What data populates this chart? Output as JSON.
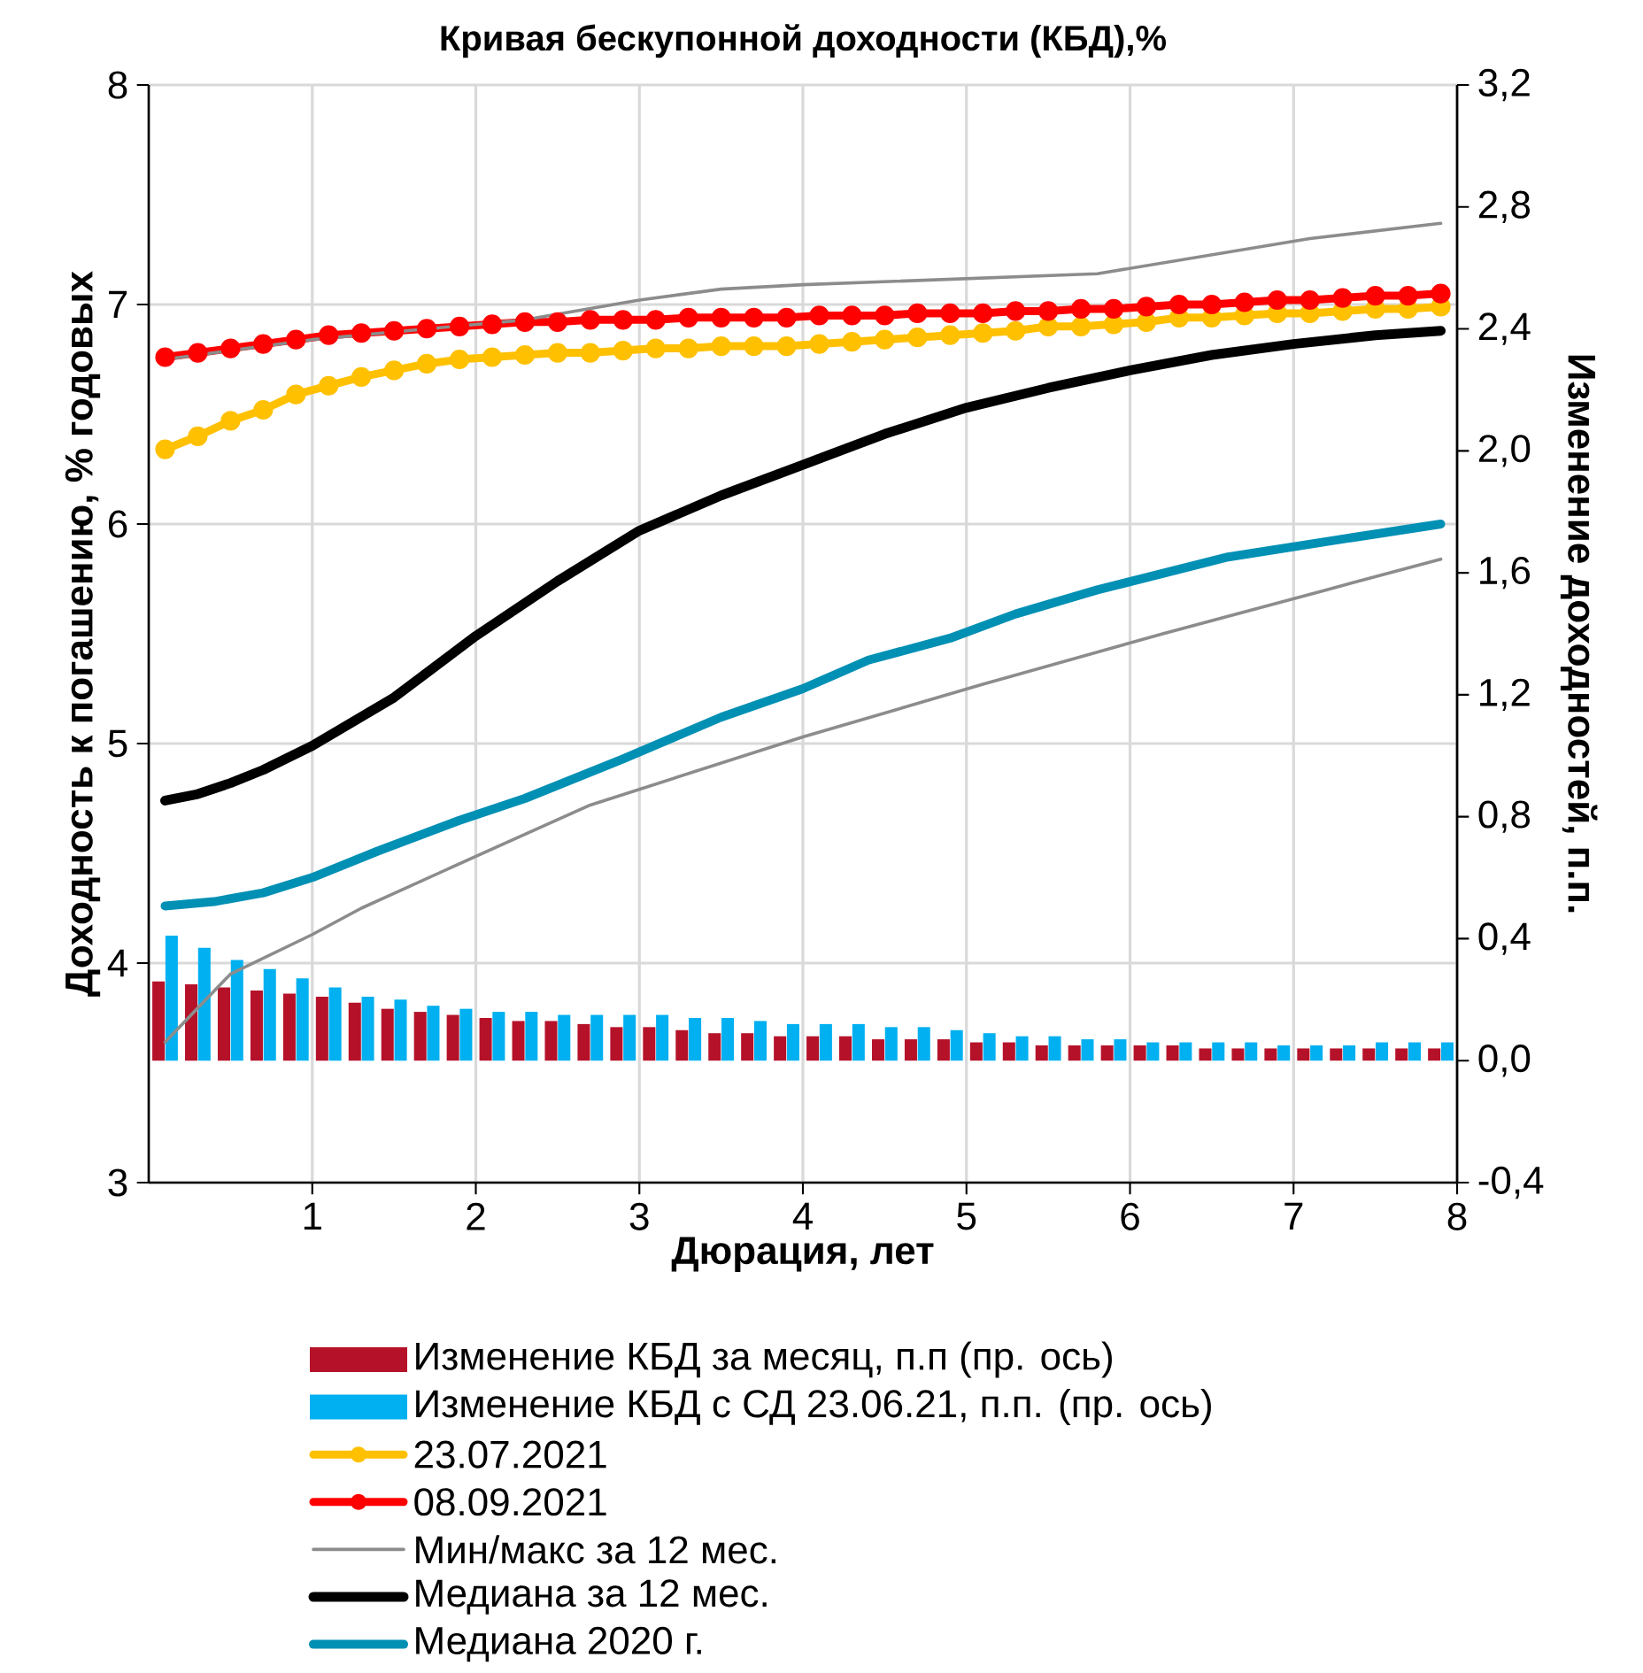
{
  "chart_data": {
    "type": "line",
    "title": "Кривая бескупонной доходности (КБД),%",
    "xlabel": "Дюрация, лет",
    "ylabel": "Доходность к погашению, % годовых",
    "y2label": "Изменение доходностей, п.п.",
    "x": [
      0.1,
      0.3,
      0.5,
      0.7,
      0.9,
      1.1,
      1.3,
      1.5,
      1.7,
      1.9,
      2.1,
      2.3,
      2.5,
      2.7,
      2.9,
      3.1,
      3.3,
      3.5,
      3.7,
      3.9,
      4.1,
      4.3,
      4.5,
      4.7,
      4.9,
      5.1,
      5.3,
      5.5,
      5.7,
      5.9,
      6.1,
      6.3,
      6.5,
      6.7,
      6.9,
      7.1,
      7.3,
      7.5,
      7.7,
      7.9
    ],
    "xlim": [
      0,
      8
    ],
    "xticks": [
      1,
      2,
      3,
      4,
      5,
      6,
      7,
      8
    ],
    "ylim": [
      3,
      8
    ],
    "yticks": [
      3,
      4,
      5,
      6,
      7,
      8
    ],
    "y2lim": [
      -0.4,
      3.2
    ],
    "y2ticks": [
      {
        "value": -0.4,
        "label": "-0,4"
      },
      {
        "value": 0,
        "label": "0,0"
      },
      {
        "value": 0.4,
        "label": "0,4"
      },
      {
        "value": 0.8,
        "label": "0,8"
      },
      {
        "value": 1.2,
        "label": "1,2"
      },
      {
        "value": 1.6,
        "label": "1,6"
      },
      {
        "value": 2.0,
        "label": "2,0"
      },
      {
        "value": 2.4,
        "label": "2,4"
      },
      {
        "value": 2.8,
        "label": "2,8"
      },
      {
        "value": 3.2,
        "label": "3,2"
      }
    ],
    "grid": true,
    "legend": "bottom",
    "series": [
      {
        "type": "bar",
        "axis": "y2",
        "name": "Изменение КБД за месяц, п.п (пр. ось)",
        "color": "#b5122a",
        "values": [
          0.26,
          0.25,
          0.24,
          0.23,
          0.22,
          0.21,
          0.19,
          0.17,
          0.16,
          0.15,
          0.14,
          0.13,
          0.13,
          0.12,
          0.11,
          0.11,
          0.1,
          0.09,
          0.09,
          0.08,
          0.08,
          0.08,
          0.07,
          0.07,
          0.07,
          0.06,
          0.06,
          0.05,
          0.05,
          0.05,
          0.05,
          0.05,
          0.04,
          0.04,
          0.04,
          0.04,
          0.04,
          0.04,
          0.04,
          0.04
        ]
      },
      {
        "type": "bar",
        "axis": "y2",
        "name": "Изменение КБД с СД 23.06.21, п.п. (пр. ось)",
        "color": "#00b0f0",
        "values": [
          0.41,
          0.37,
          0.33,
          0.3,
          0.27,
          0.24,
          0.21,
          0.2,
          0.18,
          0.17,
          0.16,
          0.16,
          0.15,
          0.15,
          0.15,
          0.15,
          0.14,
          0.14,
          0.13,
          0.12,
          0.12,
          0.12,
          0.11,
          0.11,
          0.1,
          0.09,
          0.08,
          0.08,
          0.07,
          0.07,
          0.06,
          0.06,
          0.06,
          0.06,
          0.05,
          0.05,
          0.05,
          0.06,
          0.06,
          0.06
        ]
      },
      {
        "name": "23.07.2021",
        "color": "#ffc000",
        "marker": "circle",
        "values": [
          6.34,
          6.4,
          6.47,
          6.52,
          6.59,
          6.63,
          6.67,
          6.7,
          6.73,
          6.75,
          6.76,
          6.77,
          6.78,
          6.78,
          6.79,
          6.8,
          6.8,
          6.81,
          6.81,
          6.81,
          6.82,
          6.83,
          6.84,
          6.85,
          6.86,
          6.87,
          6.88,
          6.9,
          6.9,
          6.91,
          6.92,
          6.94,
          6.94,
          6.95,
          6.96,
          6.96,
          6.97,
          6.98,
          6.98,
          6.99
        ]
      },
      {
        "name": "08.09.2021",
        "color": "#ff0000",
        "marker": "circle",
        "values": [
          6.76,
          6.78,
          6.8,
          6.82,
          6.84,
          6.86,
          6.87,
          6.88,
          6.89,
          6.9,
          6.91,
          6.92,
          6.92,
          6.93,
          6.93,
          6.93,
          6.94,
          6.94,
          6.94,
          6.94,
          6.95,
          6.95,
          6.95,
          6.96,
          6.96,
          6.96,
          6.97,
          6.97,
          6.98,
          6.98,
          6.99,
          7.0,
          7.0,
          7.01,
          7.02,
          7.02,
          7.03,
          7.04,
          7.04,
          7.05
        ]
      },
      {
        "name": "Мин/макс за 12 мес.",
        "color": "#8c8c8c",
        "x": [
          0.1,
          0.5,
          1.0,
          1.3,
          2.1,
          2.7,
          4.0,
          5.1,
          6.2,
          7.2,
          7.9
        ],
        "values": [
          3.64,
          3.95,
          4.13,
          4.25,
          4.52,
          4.72,
          5.03,
          5.27,
          5.5,
          5.7,
          5.84
        ]
      },
      {
        "color": "#8c8c8c",
        "x": [
          0.1,
          1.0,
          2.3,
          3.0,
          3.5,
          4.0,
          5.8,
          7.1,
          7.9
        ],
        "values": [
          6.75,
          6.84,
          6.93,
          7.02,
          7.07,
          7.09,
          7.14,
          7.3,
          7.37
        ]
      },
      {
        "name": "Медиана за 12 мес.",
        "color": "#000000",
        "x": [
          0.1,
          0.3,
          0.5,
          0.7,
          1.0,
          1.5,
          2.0,
          2.5,
          3.0,
          3.5,
          4.0,
          4.5,
          5.0,
          5.5,
          6.0,
          6.5,
          7.0,
          7.5,
          7.9
        ],
        "values": [
          4.74,
          4.77,
          4.82,
          4.88,
          4.99,
          5.21,
          5.49,
          5.74,
          5.97,
          6.13,
          6.27,
          6.41,
          6.53,
          6.62,
          6.7,
          6.77,
          6.82,
          6.86,
          6.88
        ]
      },
      {
        "name": "Медиана 2020 г.",
        "color": "#0090b4",
        "x": [
          0.1,
          0.4,
          0.7,
          1.0,
          1.4,
          1.9,
          2.3,
          2.9,
          3.5,
          4.0,
          4.4,
          4.9,
          5.3,
          5.8,
          6.6,
          7.2,
          7.9
        ],
        "values": [
          4.26,
          4.28,
          4.32,
          4.39,
          4.51,
          4.65,
          4.75,
          4.93,
          5.12,
          5.25,
          5.38,
          5.48,
          5.59,
          5.7,
          5.85,
          5.92,
          6.0
        ]
      }
    ]
  }
}
